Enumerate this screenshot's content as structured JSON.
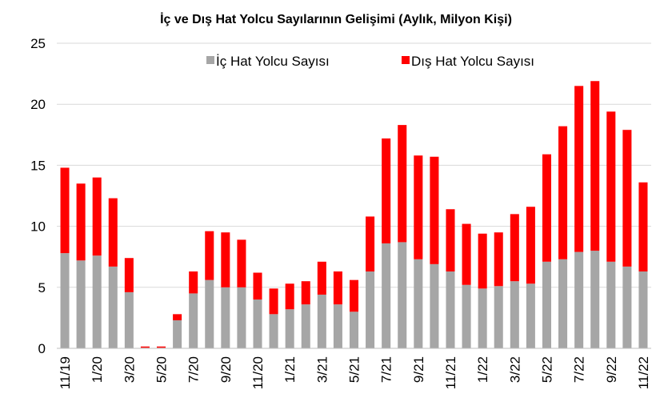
{
  "chart_data": {
    "type": "bar",
    "stacked": true,
    "title": "İç ve Dış Hat Yolcu Sayılarının Gelişimi (Aylık, Milyon Kişi)",
    "xlabel": "",
    "ylabel": "",
    "ylim": [
      0,
      25
    ],
    "y_ticks": [
      "0",
      "5",
      "10",
      "15",
      "20",
      "25"
    ],
    "y_tick_values": [
      0,
      5,
      10,
      15,
      20,
      25
    ],
    "grid": "horizontal",
    "legend_position": "top",
    "categories": [
      "11/19",
      "12/19",
      "1/20",
      "2/20",
      "3/20",
      "4/20",
      "5/20",
      "6/20",
      "7/20",
      "8/20",
      "9/20",
      "10/20",
      "11/20",
      "12/20",
      "1/21",
      "2/21",
      "3/21",
      "4/21",
      "5/21",
      "6/21",
      "7/21",
      "8/21",
      "9/21",
      "10/21",
      "11/21",
      "12/21",
      "1/22",
      "2/22",
      "3/22",
      "4/22",
      "5/22",
      "6/22",
      "7/22",
      "8/22",
      "9/22",
      "10/22",
      "11/22"
    ],
    "x_tick_labels": [
      "11/19",
      "1/20",
      "3/20",
      "5/20",
      "7/20",
      "9/20",
      "11/20",
      "1/21",
      "3/21",
      "5/21",
      "7/21",
      "9/21",
      "11/21",
      "1/22",
      "3/22",
      "5/22",
      "7/22",
      "9/22",
      "11/22"
    ],
    "x_tick_indices": [
      0,
      2,
      4,
      6,
      8,
      10,
      12,
      14,
      16,
      18,
      20,
      22,
      24,
      26,
      28,
      30,
      32,
      34,
      36
    ],
    "series": [
      {
        "name": "İç Hat Yolcu Sayısı",
        "color": "#a6a6a6",
        "values": [
          7.8,
          7.2,
          7.6,
          6.7,
          4.6,
          0.05,
          0.05,
          2.3,
          4.5,
          5.6,
          5.0,
          5.0,
          4.0,
          2.8,
          3.2,
          3.6,
          4.4,
          3.6,
          3.0,
          6.3,
          8.6,
          8.7,
          7.3,
          6.9,
          6.3,
          5.2,
          4.9,
          5.1,
          5.5,
          5.3,
          7.1,
          7.3,
          7.9,
          8.0,
          7.1,
          6.7,
          6.3
        ]
      },
      {
        "name": "Dış Hat Yolcu Sayısı",
        "color": "#ff0000",
        "values": [
          7.0,
          6.3,
          6.4,
          5.6,
          2.8,
          0.1,
          0.1,
          0.5,
          1.8,
          4.0,
          4.5,
          3.9,
          2.2,
          2.1,
          2.1,
          1.9,
          2.7,
          2.7,
          2.6,
          4.5,
          8.6,
          9.6,
          8.5,
          8.8,
          5.1,
          5.0,
          4.5,
          4.4,
          5.5,
          6.3,
          8.8,
          10.9,
          13.6,
          13.9,
          12.3,
          11.2,
          7.3
        ]
      }
    ]
  }
}
